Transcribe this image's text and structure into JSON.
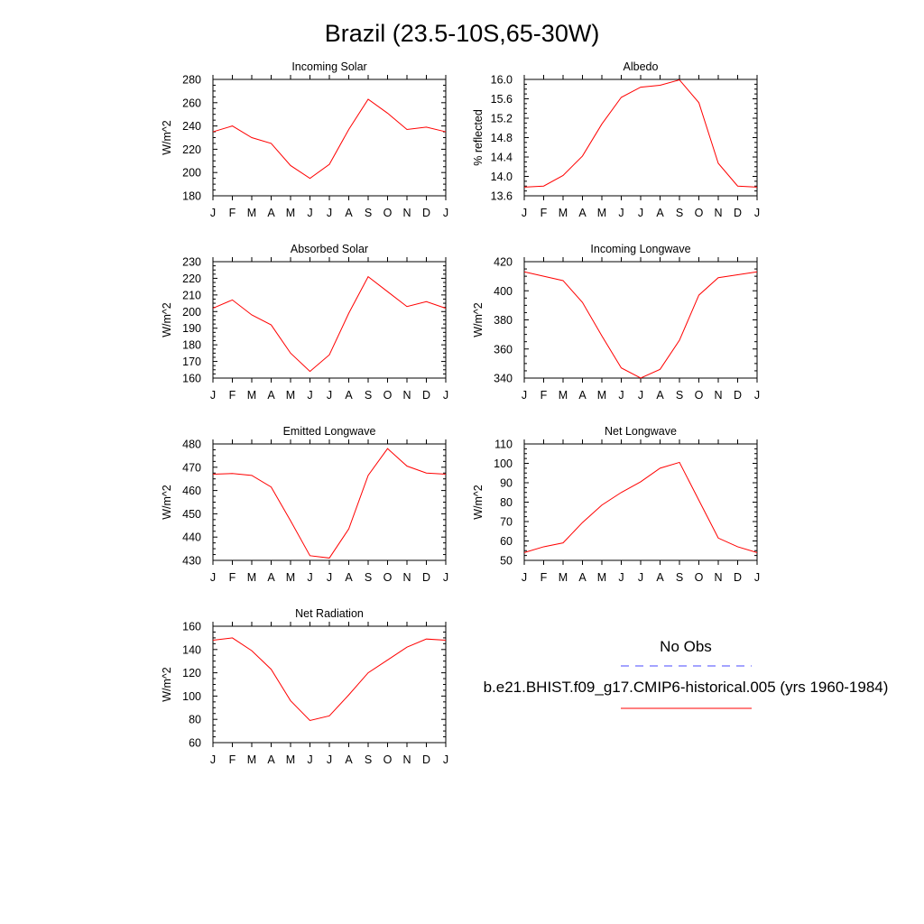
{
  "figure_title": "Brazil (23.5-10S,65-30W)",
  "legend": {
    "obs_label": "No Obs",
    "obs_color": "#4a4aff",
    "model_label": "b.e21.BHIST.f09_g17.CMIP6-historical.005 (yrs 1960-1984)",
    "model_color": "#ff0000"
  },
  "chart_data": [
    {
      "type": "line",
      "title": "Incoming Solar",
      "ylabel": "W/m^2",
      "xlabel": "",
      "categories": [
        "J",
        "F",
        "M",
        "A",
        "M",
        "J",
        "J",
        "A",
        "S",
        "O",
        "N",
        "D",
        "J"
      ],
      "ylim": [
        180,
        280
      ],
      "yticks": [
        180,
        200,
        220,
        240,
        260,
        280
      ],
      "ytick_labels": [
        "180",
        "200",
        "220",
        "240",
        "260",
        "280"
      ],
      "series": [
        {
          "name": "b.e21.BHIST.f09_g17.CMIP6-historical.005 (yrs 1960-1984)",
          "values": [
            235,
            240,
            230,
            225,
            206,
            195,
            207,
            237,
            263,
            251,
            237,
            239,
            235
          ]
        }
      ]
    },
    {
      "type": "line",
      "title": "Albedo",
      "ylabel": "% reflected",
      "xlabel": "",
      "categories": [
        "J",
        "F",
        "M",
        "A",
        "M",
        "J",
        "J",
        "A",
        "S",
        "O",
        "N",
        "D",
        "J"
      ],
      "ylim": [
        13.6,
        16.0
      ],
      "yticks": [
        13.6,
        14.0,
        14.4,
        14.8,
        15.2,
        15.6,
        16.0
      ],
      "ytick_labels": [
        "13.6",
        "14.0",
        "14.4",
        "14.8",
        "15.2",
        "15.6",
        "16.0"
      ],
      "series": [
        {
          "name": "b.e21.BHIST.f09_g17.CMIP6-historical.005 (yrs 1960-1984)",
          "values": [
            13.78,
            13.8,
            14.02,
            14.42,
            15.08,
            15.63,
            15.84,
            15.88,
            15.99,
            15.52,
            14.27,
            13.8,
            13.78
          ]
        }
      ]
    },
    {
      "type": "line",
      "title": "Absorbed Solar",
      "ylabel": "W/m^2",
      "xlabel": "",
      "categories": [
        "J",
        "F",
        "M",
        "A",
        "M",
        "J",
        "J",
        "A",
        "S",
        "O",
        "N",
        "D",
        "J"
      ],
      "ylim": [
        160,
        230
      ],
      "yticks": [
        160,
        170,
        180,
        190,
        200,
        210,
        220,
        230
      ],
      "ytick_labels": [
        "160",
        "170",
        "180",
        "190",
        "200",
        "210",
        "220",
        "230"
      ],
      "series": [
        {
          "name": "b.e21.BHIST.f09_g17.CMIP6-historical.005 (yrs 1960-1984)",
          "values": [
            202,
            207,
            198,
            192,
            175,
            164,
            174,
            199,
            221,
            212,
            203,
            206,
            202
          ]
        }
      ]
    },
    {
      "type": "line",
      "title": "Incoming Longwave",
      "ylabel": "W/m^2",
      "xlabel": "",
      "categories": [
        "J",
        "F",
        "M",
        "A",
        "M",
        "J",
        "J",
        "A",
        "S",
        "O",
        "N",
        "D",
        "J"
      ],
      "ylim": [
        340,
        420
      ],
      "yticks": [
        340,
        360,
        380,
        400,
        420
      ],
      "ytick_labels": [
        "340",
        "360",
        "380",
        "400",
        "420"
      ],
      "series": [
        {
          "name": "b.e21.BHIST.f09_g17.CMIP6-historical.005 (yrs 1960-1984)",
          "values": [
            413,
            410,
            407,
            392,
            369,
            347,
            340,
            346,
            366,
            397,
            409,
            411,
            413
          ]
        }
      ]
    },
    {
      "type": "line",
      "title": "Emitted Longwave",
      "ylabel": "W/m^2",
      "xlabel": "",
      "categories": [
        "J",
        "F",
        "M",
        "A",
        "M",
        "J",
        "J",
        "A",
        "S",
        "O",
        "N",
        "D",
        "J"
      ],
      "ylim": [
        430,
        480
      ],
      "yticks": [
        430,
        440,
        450,
        460,
        470,
        480
      ],
      "ytick_labels": [
        "430",
        "440",
        "450",
        "460",
        "470",
        "480"
      ],
      "series": [
        {
          "name": "b.e21.BHIST.f09_g17.CMIP6-historical.005 (yrs 1960-1984)",
          "values": [
            467,
            467.3,
            466.5,
            461.5,
            447,
            432,
            431,
            443.5,
            466.5,
            478,
            470.5,
            467.5,
            467
          ]
        }
      ]
    },
    {
      "type": "line",
      "title": "Net Longwave",
      "ylabel": "W/m^2",
      "xlabel": "",
      "categories": [
        "J",
        "F",
        "M",
        "A",
        "M",
        "J",
        "J",
        "A",
        "S",
        "O",
        "N",
        "D",
        "J"
      ],
      "ylim": [
        50,
        110
      ],
      "yticks": [
        50,
        60,
        70,
        80,
        90,
        100,
        110
      ],
      "ytick_labels": [
        "50",
        "60",
        "70",
        "80",
        "90",
        "100",
        "110"
      ],
      "series": [
        {
          "name": "b.e21.BHIST.f09_g17.CMIP6-historical.005 (yrs 1960-1984)",
          "values": [
            54,
            57,
            59,
            69.5,
            78.5,
            85,
            90.5,
            97.5,
            100.5,
            81,
            61.5,
            57,
            54
          ]
        }
      ]
    },
    {
      "type": "line",
      "title": "Net Radiation",
      "ylabel": "W/m^2",
      "xlabel": "",
      "categories": [
        "J",
        "F",
        "M",
        "A",
        "M",
        "J",
        "J",
        "A",
        "S",
        "O",
        "N",
        "D",
        "J"
      ],
      "ylim": [
        60,
        160
      ],
      "yticks": [
        60,
        80,
        100,
        120,
        140,
        160
      ],
      "ytick_labels": [
        "60",
        "80",
        "100",
        "120",
        "140",
        "160"
      ],
      "series": [
        {
          "name": "b.e21.BHIST.f09_g17.CMIP6-historical.005 (yrs 1960-1984)",
          "values": [
            148,
            150,
            139,
            123,
            96,
            79,
            83,
            101,
            120,
            131,
            142,
            149,
            148
          ]
        }
      ]
    }
  ]
}
